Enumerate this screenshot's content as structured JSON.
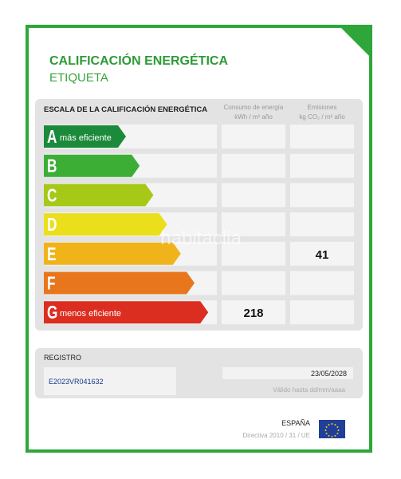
{
  "header": {
    "title": "CALIFICACIÓN ENERGÉTICA",
    "subtitle": "ETIQUETA"
  },
  "scale": {
    "title": "ESCALA DE LA CALIFICACIÓN ENERGÉTICA",
    "columns": [
      {
        "line1": "Consumo de energía",
        "line2": "kWh / m² año"
      },
      {
        "line1": "Emisiones",
        "line2": "kg CO₂ / m² año"
      }
    ],
    "rows": [
      {
        "letter": "A",
        "note": "más eficiente",
        "color": "#1c8a3b"
      },
      {
        "letter": "B",
        "color": "#3cae36"
      },
      {
        "letter": "C",
        "color": "#a6c817"
      },
      {
        "letter": "D",
        "color": "#ebdf1c"
      },
      {
        "letter": "E",
        "color": "#f0b41a",
        "emissions": "41"
      },
      {
        "letter": "F",
        "color": "#e8761c"
      },
      {
        "letter": "G",
        "note": "menos eficiente",
        "color": "#dc2e20",
        "consumption": "218"
      }
    ]
  },
  "watermark": "habitaclia",
  "registry": {
    "title": "REGISTRO",
    "number": "E2023VR041632",
    "date": "23/05/2028",
    "date_hint": "Válido hasta dd/mm/aaaa"
  },
  "footer": {
    "country": "ESPAÑA",
    "directive": "Directiva 2010 / 31 / UE"
  }
}
